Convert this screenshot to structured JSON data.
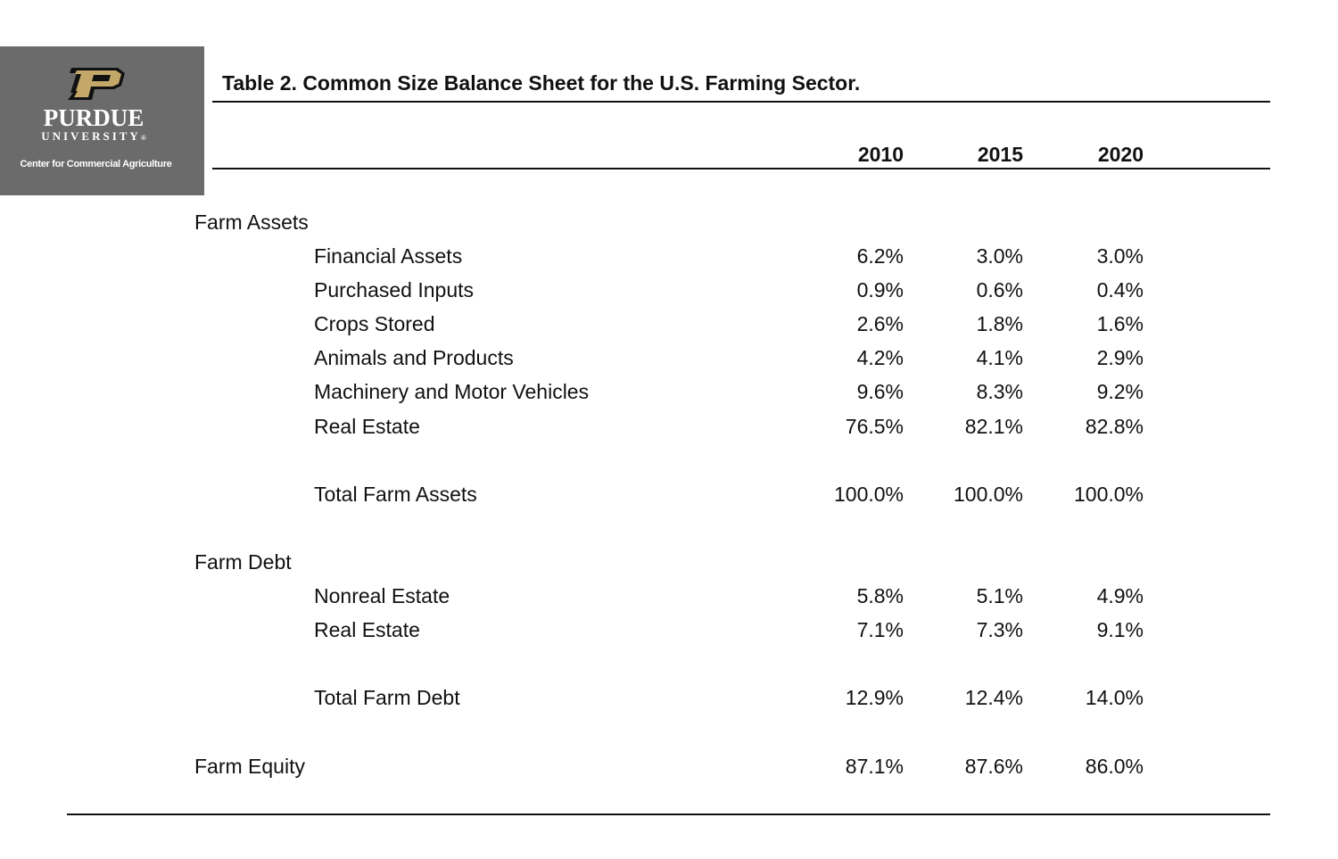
{
  "logo": {
    "name": "PURDUE",
    "subname": "UNIVERSITY",
    "registered_mark": "®",
    "center": "Center for Commercial Agriculture"
  },
  "table": {
    "title": "Table 2. Common Size Balance Sheet for the U.S. Farming Sector.",
    "years": [
      "2010",
      "2015",
      "2020"
    ],
    "rows": [
      {
        "label": "Farm Assets",
        "values": []
      },
      {
        "label": "Financial Assets",
        "values": [
          "6.2%",
          "3.0%",
          "3.0%"
        ]
      },
      {
        "label": "Purchased Inputs",
        "values": [
          "0.9%",
          "0.6%",
          "0.4%"
        ]
      },
      {
        "label": "Crops Stored",
        "values": [
          "2.6%",
          "1.8%",
          "1.6%"
        ]
      },
      {
        "label": "Animals and Products",
        "values": [
          "4.2%",
          "4.1%",
          "2.9%"
        ]
      },
      {
        "label": "Machinery and Motor Vehicles",
        "values": [
          "9.6%",
          "8.3%",
          "9.2%"
        ]
      },
      {
        "label": "Real Estate",
        "values": [
          "76.5%",
          "82.1%",
          "82.8%"
        ]
      },
      {
        "label": "Total Farm Assets",
        "values": [
          "100.0%",
          "100.0%",
          "100.0%"
        ]
      },
      {
        "label": "Farm Debt",
        "values": []
      },
      {
        "label": "Nonreal Estate",
        "values": [
          "5.8%",
          "5.1%",
          "4.9%"
        ]
      },
      {
        "label": "Real Estate",
        "values": [
          "7.1%",
          "7.3%",
          "9.1%"
        ]
      },
      {
        "label": "Total Farm Debt",
        "values": [
          "12.9%",
          "12.4%",
          "14.0%"
        ]
      },
      {
        "label": "Farm Equity",
        "values": [
          "87.1%",
          "87.6%",
          "86.0%"
        ]
      }
    ]
  },
  "colors": {
    "logo_background": "#6b6b6b",
    "logo_gold": "#c4a86a",
    "text": "#111111"
  },
  "icons": {
    "logo_mark": "purdue-p-logo-icon"
  }
}
